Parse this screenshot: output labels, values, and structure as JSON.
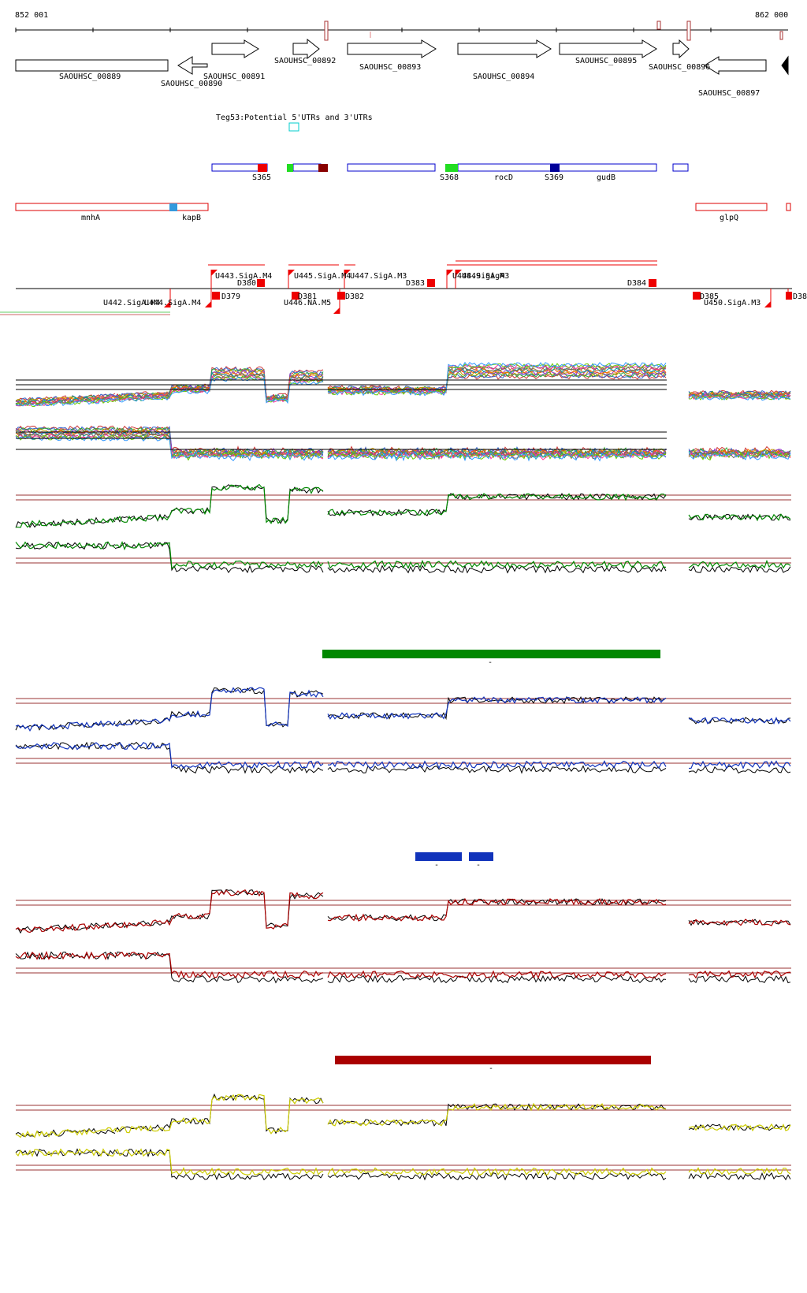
{
  "coords": {
    "start": "852 001",
    "end": "862 000"
  },
  "genes": [
    {
      "label": "SAOUHSC_00889",
      "dir": "none"
    },
    {
      "label": "SAOUHSC_00890",
      "dir": "left"
    },
    {
      "label": "SAOUHSC_00891",
      "dir": "right"
    },
    {
      "label": "SAOUHSC_00892",
      "dir": "right"
    },
    {
      "label": "SAOUHSC_00893",
      "dir": "right"
    },
    {
      "label": "SAOUHSC_00894",
      "dir": "right"
    },
    {
      "label": "SAOUHSC_00895",
      "dir": "right"
    },
    {
      "label": "SAOUHSC_00896",
      "dir": "right"
    },
    {
      "label": "SAOUHSC_00897",
      "dir": "left"
    }
  ],
  "teg_label": "Teg53:Potential 5'UTRs and 3'UTRs",
  "blue_features": [
    "S365",
    "S368",
    "rocD",
    "S369",
    "gudB"
  ],
  "red_features": [
    "mnhA",
    "kapB",
    "glpQ"
  ],
  "promoters": [
    "U443.SigA.M4",
    "U445.SigA.M4",
    "U447.SigA.M3",
    "U448.SigA.M3",
    "U449.SigA",
    "U442.SigA.M4",
    "U444.SigA.M4",
    "U446.NA.M5",
    "U450.SigA.M3"
  ],
  "terminators": [
    "D379",
    "D380",
    "D381",
    "D382",
    "D383",
    "D384",
    "D385",
    "D38"
  ],
  "dash": "-",
  "colors": {
    "gene_outline": "#000000",
    "feature_blue": "#0000cc",
    "feature_red": "#dd0000",
    "green_track": "#008800",
    "blue_track": "#1133bb",
    "red_track": "#aa0000",
    "yellow_track": "#cccc00",
    "threshold": "#993333"
  }
}
